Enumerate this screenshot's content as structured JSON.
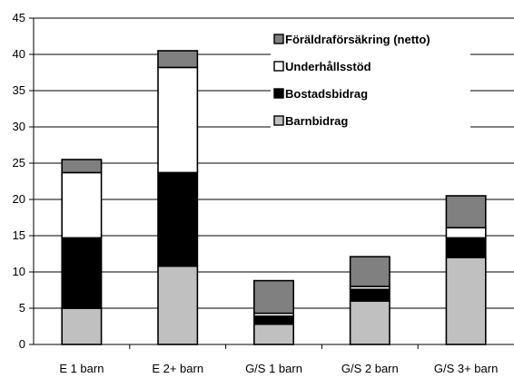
{
  "chart_data": {
    "type": "bar",
    "stacked": true,
    "title": "",
    "xlabel": "",
    "ylabel": "",
    "ylim": [
      0,
      45
    ],
    "yticks": [
      0,
      5,
      10,
      15,
      20,
      25,
      30,
      35,
      40,
      45
    ],
    "grid": "horizontal",
    "legend_position": "top-right",
    "categories": [
      "E 1 barn",
      "E 2+ barn",
      "G/S 1 barn",
      "G/S 2 barn",
      "G/S 3+ barn"
    ],
    "series": [
      {
        "name": "Barnbidrag",
        "color": "#c0c0c0",
        "values": [
          5.0,
          10.8,
          2.8,
          6.0,
          12.0
        ]
      },
      {
        "name": "Bostadsbidrag",
        "color": "#000000",
        "values": [
          9.7,
          12.9,
          1.1,
          1.6,
          2.7
        ]
      },
      {
        "name": "Underhållsstöd",
        "color": "#ffffff",
        "values": [
          9.0,
          14.5,
          0.4,
          0.4,
          1.4
        ]
      },
      {
        "name": "Föräldraförsäkring (netto)",
        "color": "#808080",
        "values": [
          1.8,
          2.3,
          4.5,
          4.1,
          4.4
        ]
      }
    ],
    "legend_order": [
      "Föräldraförsäkring (netto)",
      "Underhållsstöd",
      "Bostadsbidrag",
      "Barnbidrag"
    ]
  }
}
